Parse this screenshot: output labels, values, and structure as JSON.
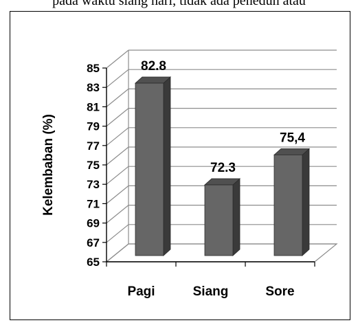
{
  "caption": "pada waktu siang hari, tidak ada peneduh atau",
  "chart_data": {
    "type": "bar",
    "categories": [
      "Pagi",
      "Siang",
      "Sore"
    ],
    "values": [
      82.8,
      72.3,
      75.4
    ],
    "data_labels": [
      "82.8",
      "72.3",
      "75,4"
    ],
    "ylabel": "Kelembaban (%)",
    "ylim": [
      65,
      85
    ],
    "yticks": [
      65,
      67,
      69,
      71,
      73,
      75,
      77,
      79,
      81,
      83,
      85
    ],
    "grid": true,
    "style": "3d",
    "bar_color": "#666666",
    "bar_side_color": "#3a3a3a",
    "bar_top_color": "#505050"
  }
}
